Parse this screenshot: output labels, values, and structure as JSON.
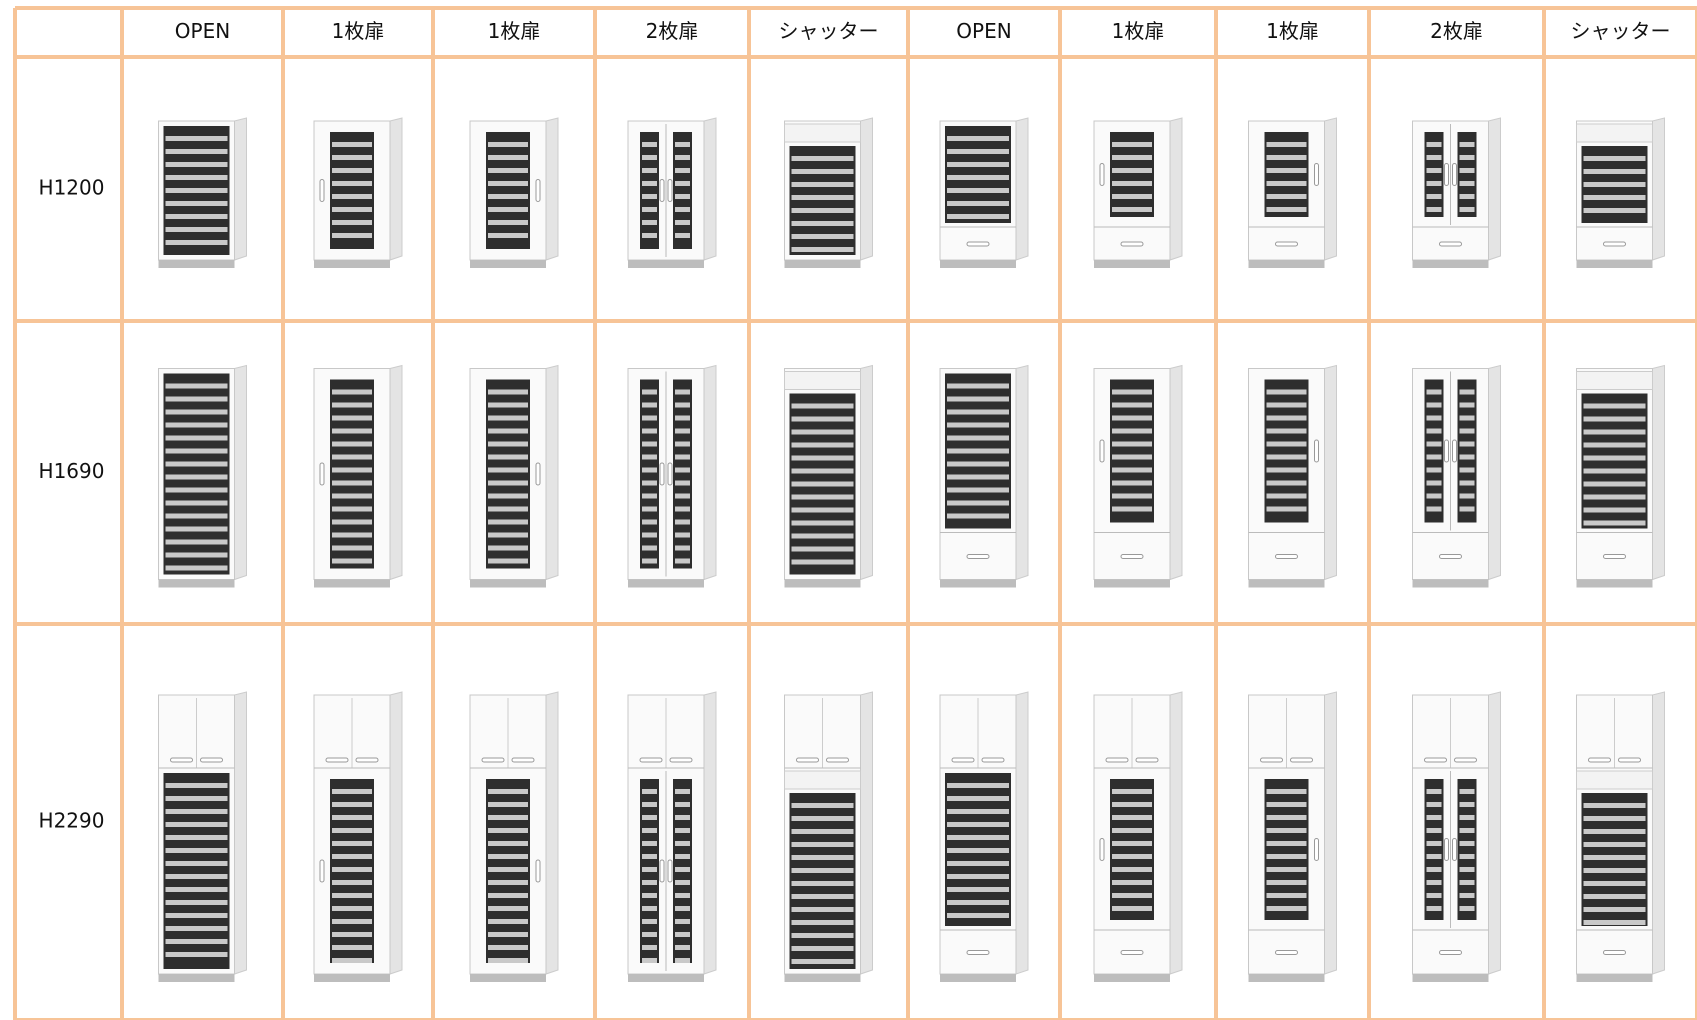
{
  "table": {
    "header": [
      "OPEN",
      "1枚扉",
      "1枚扉",
      "2枚扉",
      "シャッター",
      "OPEN",
      "1枚扉",
      "1枚扉",
      "2枚扉",
      "シャッター"
    ],
    "rows": [
      "H1200",
      "H1690",
      "H2290"
    ]
  }
}
